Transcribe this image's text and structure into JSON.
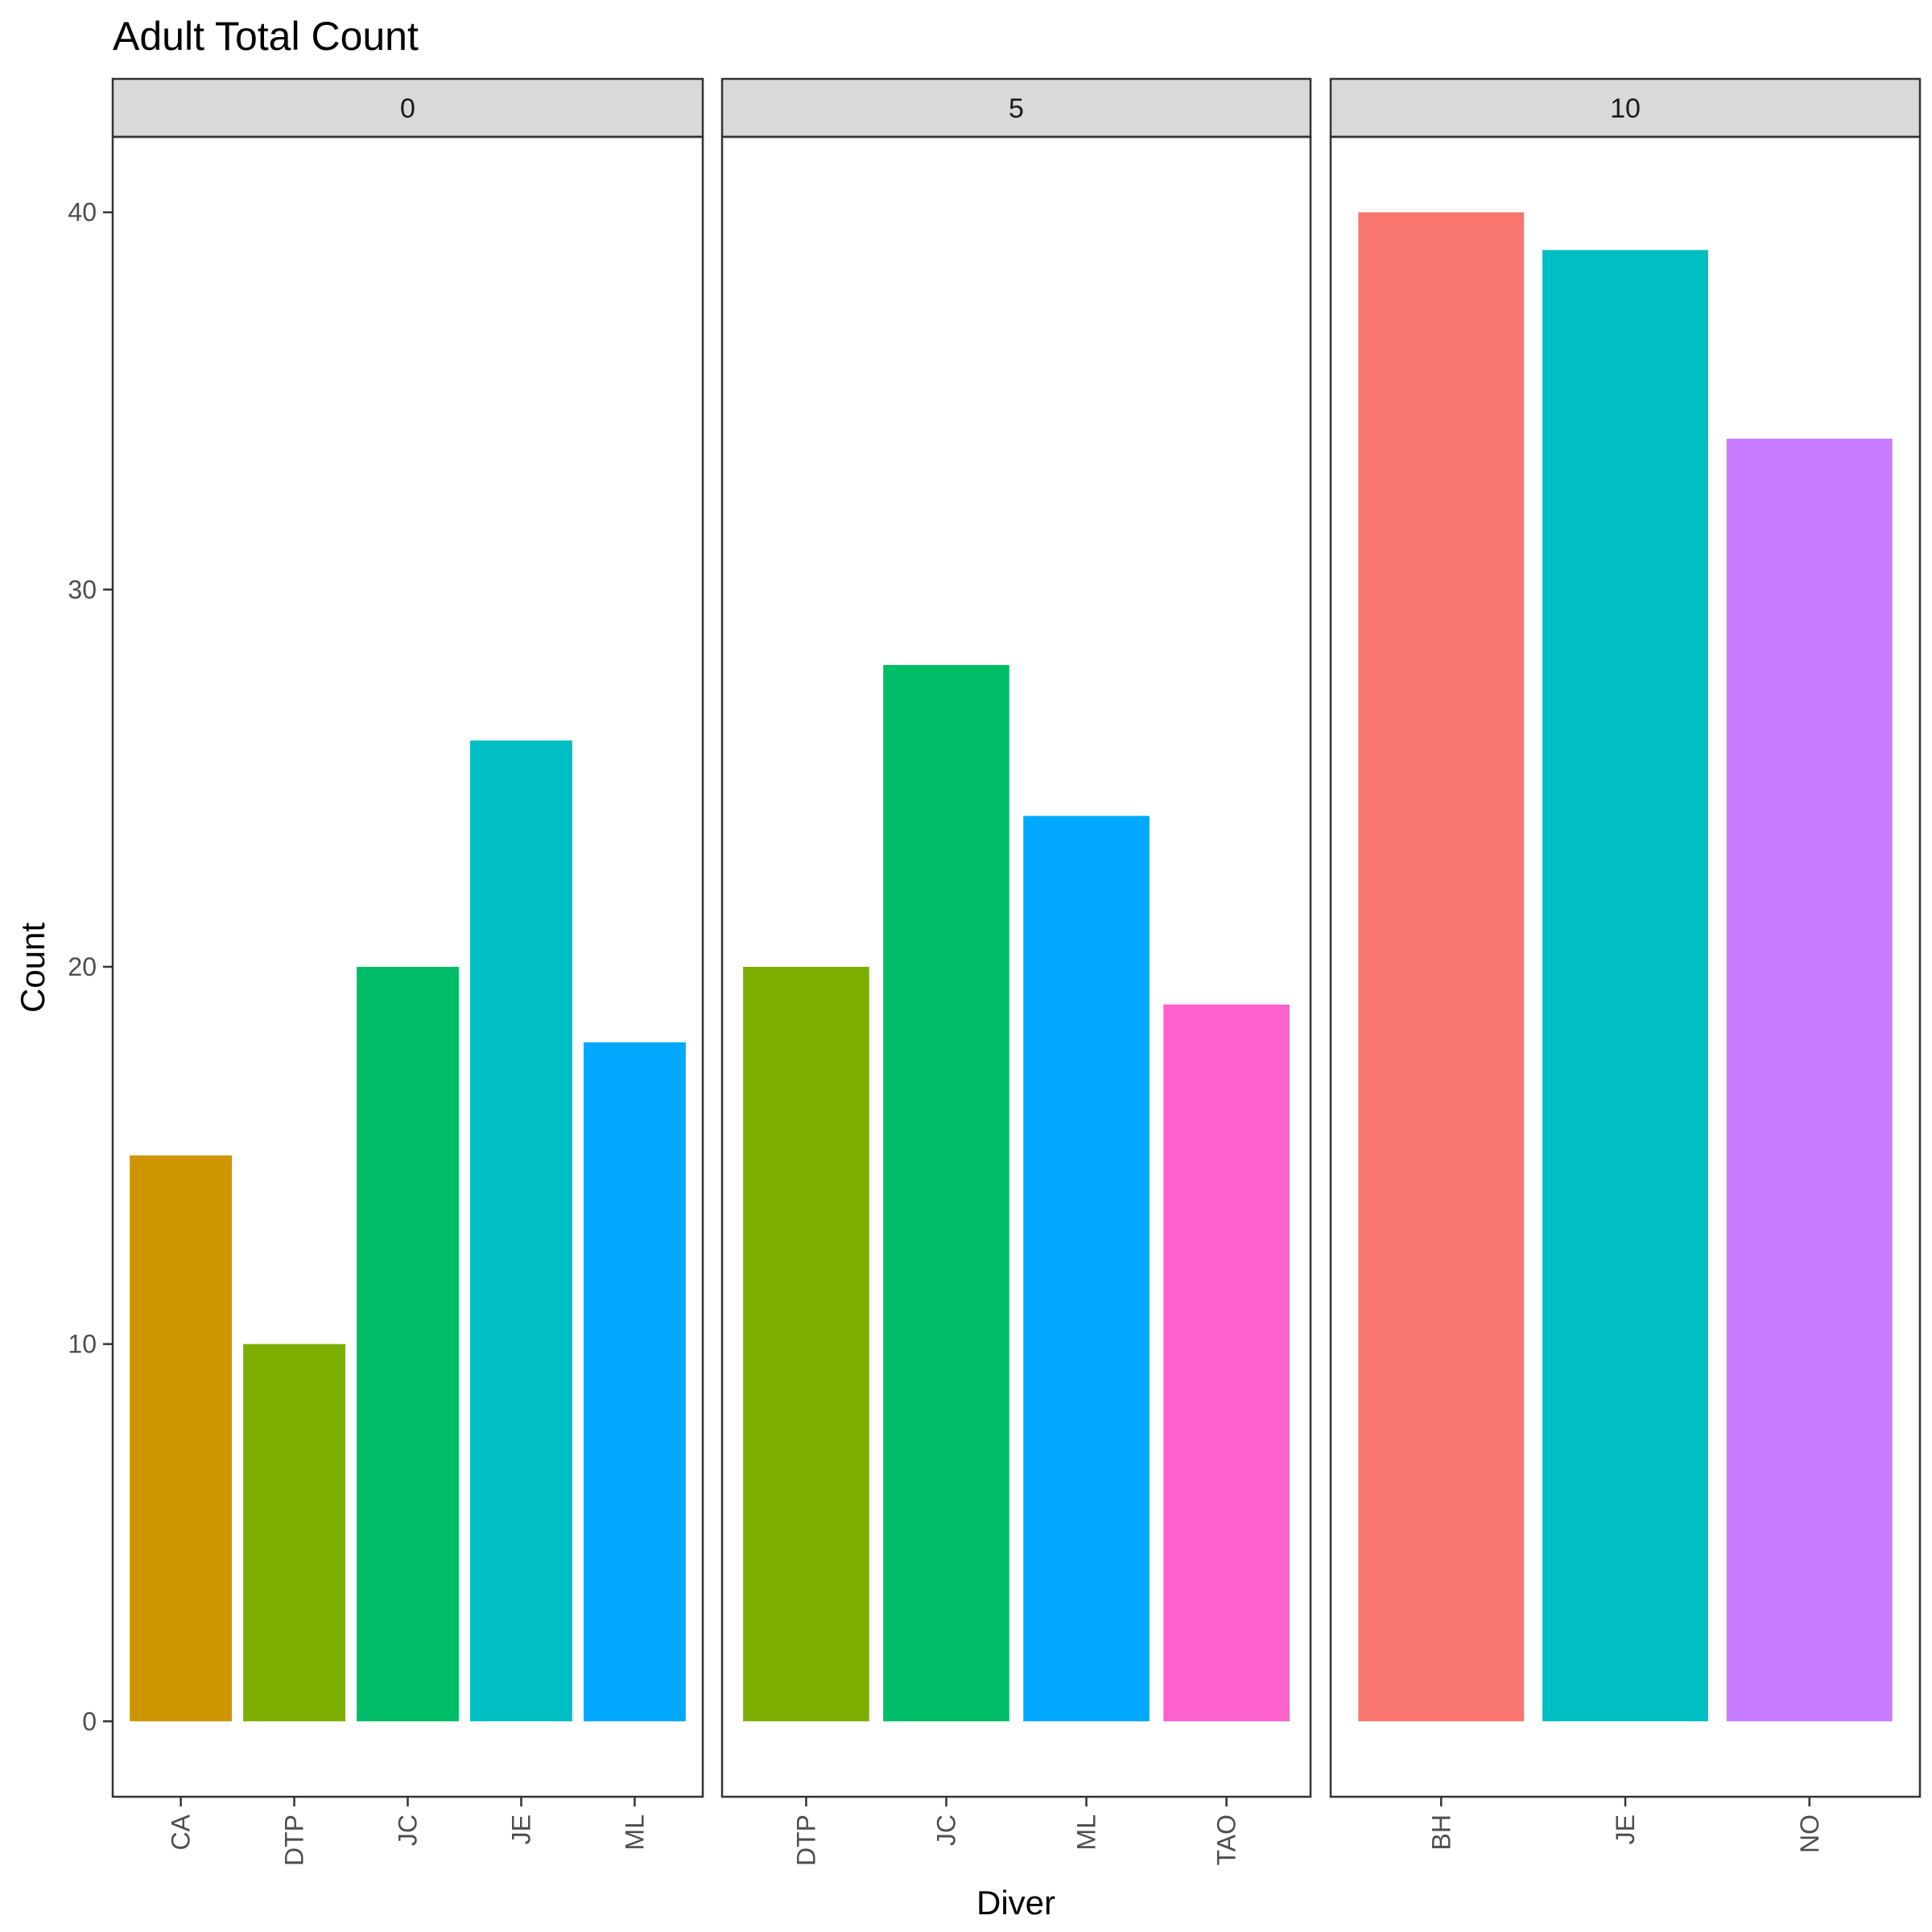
{
  "chart_data": {
    "type": "bar",
    "title": "Adult Total Count",
    "xlabel": "Diver",
    "ylabel": "Count",
    "ylim": [
      -2,
      42
    ],
    "yticks": [
      0,
      10,
      20,
      30,
      40
    ],
    "grid": false,
    "legend": "none",
    "facets": [
      {
        "label": "0",
        "categories": [
          "CA",
          "DTP",
          "JC",
          "JE",
          "ML"
        ],
        "values": [
          15,
          10,
          20,
          26,
          18
        ],
        "colors": [
          "#CD9600",
          "#7CAE00",
          "#00BE67",
          "#00BFC4",
          "#00A9FF"
        ]
      },
      {
        "label": "5",
        "categories": [
          "DTP",
          "JC",
          "ML",
          "TAO"
        ],
        "values": [
          20,
          28,
          24,
          19
        ],
        "colors": [
          "#7CAE00",
          "#00BE67",
          "#00A9FF",
          "#FF61CC"
        ]
      },
      {
        "label": "10",
        "categories": [
          "BH",
          "JE",
          "NO"
        ],
        "values": [
          40,
          39,
          34
        ],
        "colors": [
          "#F8766D",
          "#00BFC4",
          "#C77CFF"
        ]
      }
    ]
  }
}
